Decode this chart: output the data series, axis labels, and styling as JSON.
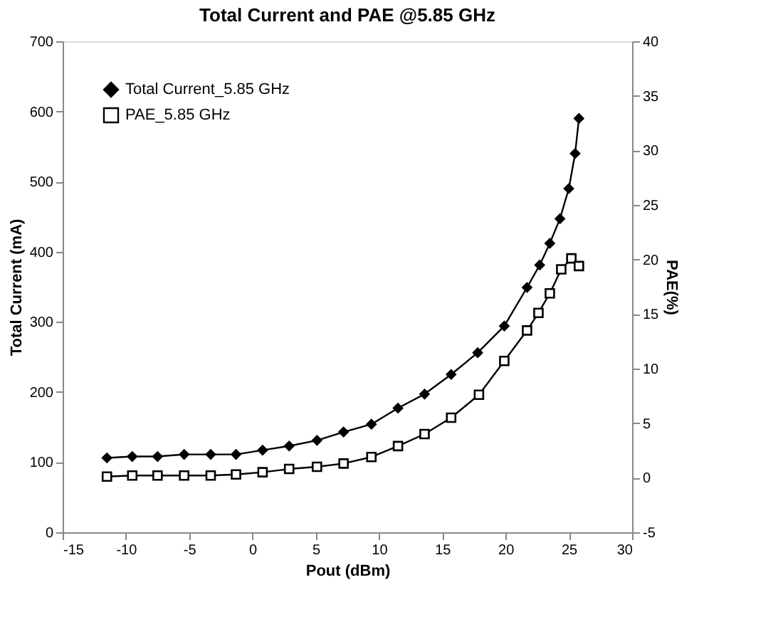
{
  "chart_data": {
    "type": "line",
    "title": "Total Current and PAE @5.85 GHz",
    "xlabel": "Pout (dBm)",
    "ylabel": "Total Current (mA)",
    "y2label": "PAE(%)",
    "xlim": [
      -15,
      30
    ],
    "xticks": [
      -15,
      -10,
      -5,
      0,
      5,
      10,
      15,
      20,
      25,
      30
    ],
    "ylim": [
      0,
      700
    ],
    "yticks": [
      0,
      100,
      200,
      300,
      400,
      500,
      600,
      700
    ],
    "y2lim": [
      -5,
      40
    ],
    "y2ticks": [
      -5,
      0,
      5,
      10,
      15,
      20,
      25,
      30,
      35,
      40
    ],
    "grid": false,
    "legend": "top left",
    "series": [
      {
        "name": "Total Current_5.85 GHz",
        "color": "#000000",
        "marker": "diamond",
        "x": [
          -11.5,
          -9.5,
          -7.5,
          -5.4,
          -3.3,
          -1.3,
          0.8,
          2.9,
          5.1,
          7.2,
          9.4,
          11.5,
          13.6,
          15.7,
          17.8,
          19.9,
          21.7,
          22.7,
          23.5,
          24.3,
          25.0,
          25.5,
          25.8
        ],
        "values": [
          106,
          108,
          108,
          111,
          111,
          111,
          117,
          123,
          131,
          143,
          154,
          177,
          197,
          225,
          256,
          294,
          349,
          381,
          412,
          447,
          490,
          540,
          590
        ]
      },
      {
        "name": "PAE_5.85 GHz",
        "color": "#000000",
        "marker": "square",
        "axis": "y2",
        "x": [
          -11.5,
          -9.5,
          -7.5,
          -5.4,
          -3.3,
          -1.3,
          0.8,
          2.9,
          5.1,
          7.2,
          9.4,
          11.5,
          13.6,
          15.7,
          17.9,
          19.9,
          21.7,
          22.6,
          23.5,
          24.4,
          25.2,
          25.8
        ],
        "values": [
          0.1,
          0.2,
          0.2,
          0.2,
          0.2,
          0.3,
          0.5,
          0.8,
          1.0,
          1.3,
          1.9,
          2.9,
          4.0,
          5.5,
          7.6,
          10.7,
          13.5,
          15.1,
          16.9,
          19.1,
          20.1,
          19.4
        ]
      }
    ]
  }
}
